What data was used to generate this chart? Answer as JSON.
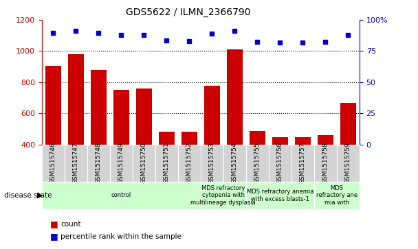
{
  "title": "GDS5622 / ILMN_2366790",
  "samples": [
    "GSM1515746",
    "GSM1515747",
    "GSM1515748",
    "GSM1515749",
    "GSM1515750",
    "GSM1515751",
    "GSM1515752",
    "GSM1515753",
    "GSM1515754",
    "GSM1515755",
    "GSM1515756",
    "GSM1515757",
    "GSM1515758",
    "GSM1515759"
  ],
  "counts": [
    905,
    980,
    880,
    750,
    760,
    480,
    480,
    775,
    1010,
    485,
    445,
    445,
    460,
    665
  ],
  "percentile_values": [
    1115,
    1130,
    1115,
    1105,
    1105,
    1070,
    1065,
    1110,
    1130,
    1060,
    1055,
    1055,
    1060,
    1105
  ],
  "ylim": [
    400,
    1200
  ],
  "yticks_left": [
    400,
    600,
    800,
    1000,
    1200
  ],
  "yticks_right_pos": [
    400,
    600,
    800,
    1000,
    1200
  ],
  "yticks_right_labels": [
    "0",
    "25",
    "50",
    "75",
    "100%"
  ],
  "bar_color": "#cc0000",
  "dot_color": "#0000cc",
  "background_color": "#ffffff",
  "disease_groups": [
    {
      "label": "control",
      "start": 0,
      "end": 7
    },
    {
      "label": "MDS refractory\ncytopenia with\nmultilineage dysplasia",
      "start": 7,
      "end": 9
    },
    {
      "label": "MDS refractory anemia\nwith excess blasts-1",
      "start": 9,
      "end": 12
    },
    {
      "label": "MDS\nrefractory ane\nmia with",
      "start": 12,
      "end": 14
    }
  ],
  "group_color": "#ccffcc",
  "sample_bg_color": "#d3d3d3",
  "disease_state_label": "disease state",
  "legend_count_label": "count",
  "legend_percentile_label": "percentile rank within the sample",
  "left_color": "#cc0000",
  "right_color": "#0000cc"
}
